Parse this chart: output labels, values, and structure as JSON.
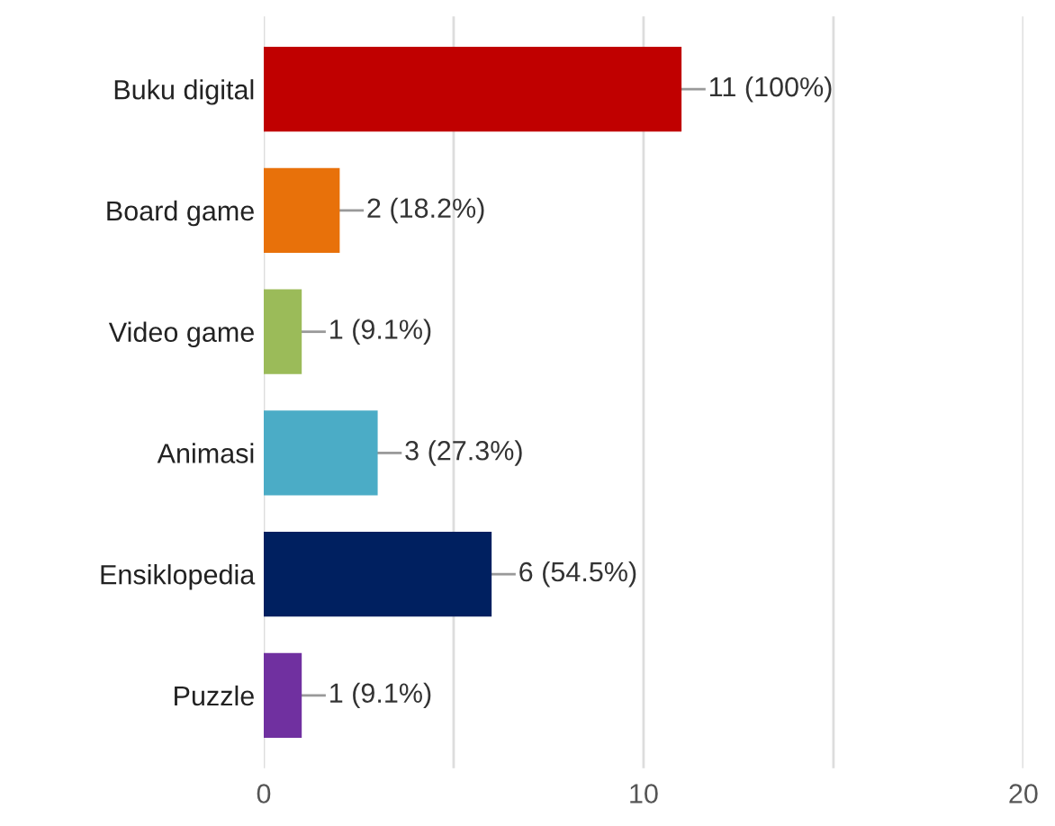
{
  "chart_data": {
    "type": "bar",
    "orientation": "horizontal",
    "categories": [
      "Buku digital",
      "Board game",
      "Video game",
      "Animasi",
      "Ensiklopedia",
      "Puzzle"
    ],
    "values": [
      11,
      2,
      1,
      3,
      6,
      1
    ],
    "colors": [
      "#c00000",
      "#e8710a",
      "#9bbb59",
      "#4bacc6",
      "#002060",
      "#7030a0"
    ],
    "value_labels": [
      "11 (100%)",
      "2 (18.2%)",
      "1 (9.1%)",
      "3 (27.3%)",
      "6 (54.5%)",
      "1 (9.1%)"
    ],
    "xlim": [
      0,
      20
    ],
    "xticks": [
      0,
      {
        "value": 5,
        "label": null
      },
      10,
      {
        "value": 15,
        "label": null
      },
      20
    ],
    "grid": "x"
  }
}
